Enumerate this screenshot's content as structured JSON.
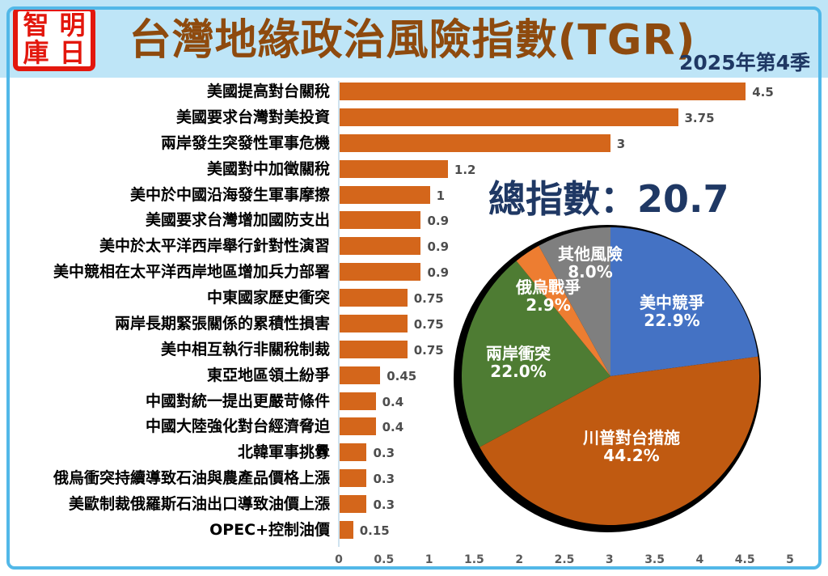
{
  "header": {
    "logo": {
      "chars": [
        "智",
        "明",
        "庫",
        "日"
      ],
      "color": "#E3170D"
    },
    "title": "台灣地緣政治風險指數(TGR)",
    "title_color": "#8E4A0E",
    "subtitle": "2025年第4季",
    "subtitle_color": "#1F3864"
  },
  "summary": {
    "total_label": "總指數：20.7",
    "color": "#1F3864"
  },
  "colors": {
    "header_bg": "#BEE5F7",
    "frame": "#52B8E8",
    "bar": "#D4661B",
    "value_label": "#4D4D4D",
    "axis_tick": "#595959",
    "pie_outline": "#000000",
    "pie_label_text": "#FFFFFF"
  },
  "chart_data": [
    {
      "type": "bar",
      "orientation": "horizontal",
      "categories": [
        "美國提高對台關稅",
        "美國要求台灣對美投資",
        "兩岸發生突發性軍事危機",
        "美國對中加徵關稅",
        "美中於中國沿海發生軍事摩擦",
        "美國要求台灣增加國防支出",
        "美中於太平洋西岸舉行針對性演習",
        "美中競相在太平洋西岸地區增加兵力部署",
        "中東國家歷史衝突",
        "兩岸長期緊張關係的累積性損害",
        "美中相互執行非關稅制裁",
        "東亞地區領土紛爭",
        "中國對統一提出更嚴苛條件",
        "中國大陸強化對台經濟脅迫",
        "北韓軍事挑釁",
        "俄烏衝突持續導致石油與農產品價格上漲",
        "美歐制裁俄羅斯石油出口導致油價上漲",
        "OPEC+控制油價"
      ],
      "values": [
        4.5,
        3.75,
        3,
        1.2,
        1,
        0.9,
        0.9,
        0.9,
        0.75,
        0.75,
        0.75,
        0.45,
        0.4,
        0.4,
        0.3,
        0.3,
        0.3,
        0.15
      ],
      "value_labels": [
        "4.5",
        "3.75",
        "3",
        "1.2",
        "1",
        "0.9",
        "0.9",
        "0.9",
        "0.75",
        "0.75",
        "0.75",
        "0.45",
        "0.4",
        "0.4",
        "0.3",
        "0.3",
        "0.3",
        "0.15"
      ],
      "xlim": [
        0,
        5
      ],
      "xticks": [
        "0",
        "0.5",
        "1",
        "1.5",
        "2",
        "2.5",
        "3",
        "3.5",
        "4",
        "4.5",
        "5"
      ],
      "grid": false,
      "bar_color": "#D4661B"
    },
    {
      "type": "pie",
      "start_angle_deg": 0,
      "direction": "clockwise",
      "slices": [
        {
          "name": "美中競爭",
          "pct": 22.9,
          "display": "22.9%",
          "color": "#4472C4"
        },
        {
          "name": "川普對台措施",
          "pct": 44.2,
          "display": "44.2%",
          "color": "#C05A11"
        },
        {
          "name": "兩岸衝突",
          "pct": 22.0,
          "display": "22.0%",
          "color": "#4E7C33"
        },
        {
          "name": "俄烏戰爭",
          "pct": 2.9,
          "display": "2.9%",
          "color": "#ED7D31"
        },
        {
          "name": "其他風險",
          "pct": 8.0,
          "display": "8.0%",
          "color": "#7F7F7F"
        }
      ]
    }
  ]
}
